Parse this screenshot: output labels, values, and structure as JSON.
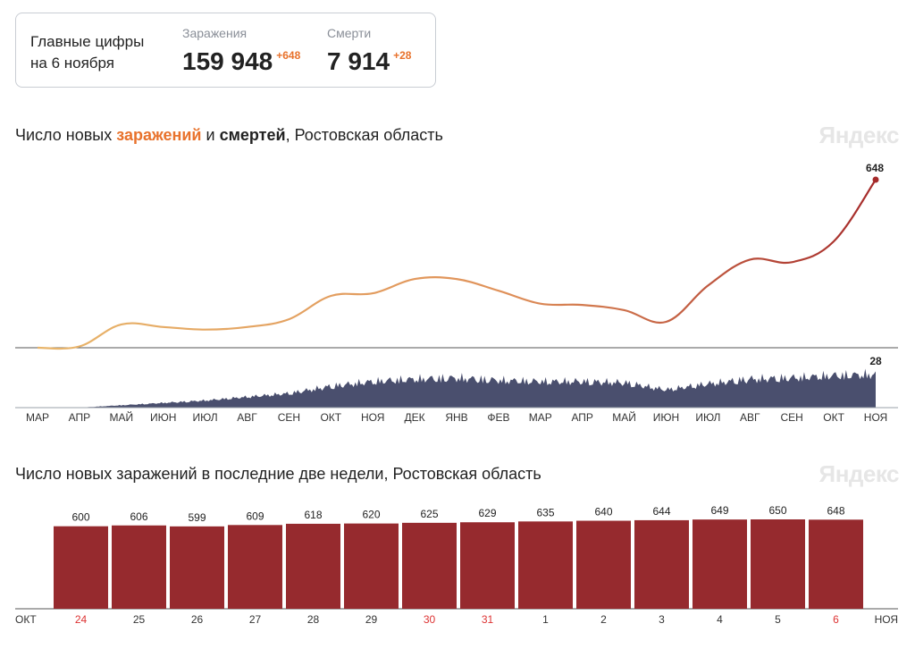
{
  "summary": {
    "title_line1": "Главные цифры",
    "title_line2": "на 6 ноября",
    "infections_label": "Заражения",
    "infections_value": "159 948",
    "infections_delta": "+648",
    "deaths_label": "Смерти",
    "deaths_value": "7 914",
    "deaths_delta": "+28"
  },
  "chart1": {
    "title_part1": "Число новых ",
    "title_infections": "заражений",
    "title_part2": " и ",
    "title_deaths": "смертей",
    "title_part3": ", Ростовская область",
    "watermark": "Яндекс",
    "last_infections_label": "648",
    "last_deaths_label": "28",
    "months": [
      "МАР",
      "АПР",
      "МАЙ",
      "ИЮН",
      "ИЮЛ",
      "АВГ",
      "СЕН",
      "ОКТ",
      "НОЯ",
      "ДЕК",
      "ЯНВ",
      "ФЕВ",
      "МАР",
      "АПР",
      "МАЙ",
      "ИЮН",
      "ИЮЛ",
      "АВГ",
      "СЕН",
      "ОКТ",
      "НОЯ"
    ]
  },
  "chart2": {
    "title": "Число новых заражений в последние две недели, Ростовская область",
    "watermark": "Яндекс",
    "left_month": "ОКТ",
    "right_month": "НОЯ"
  },
  "colors": {
    "infections_start": "#e8b56a",
    "infections_end": "#a52a2a",
    "deaths_fill": "#4a4f6e",
    "bar": "#962a2e",
    "weekend": "#d33333"
  },
  "chart_data": [
    {
      "type": "line",
      "title": "Число новых заражений и смертей, Ростовская область",
      "x": [
        "МАР",
        "АПР",
        "МАЙ",
        "ИЮН",
        "ИЮЛ",
        "АВГ",
        "СЕН",
        "ОКТ",
        "НОЯ",
        "ДЕК",
        "ЯНВ",
        "ФЕВ",
        "МАР",
        "АПР",
        "МАЙ",
        "ИЮН",
        "ИЮЛ",
        "АВГ",
        "СЕН",
        "ОКТ",
        "НОЯ"
      ],
      "series": [
        {
          "values": [
            0,
            5,
            90,
            80,
            70,
            80,
            110,
            200,
            210,
            265,
            265,
            220,
            170,
            165,
            145,
            100,
            240,
            340,
            330,
            410,
            648
          ]
        },
        {
          "values": [
            0,
            0,
            2,
            4,
            6,
            9,
            12,
            18,
            22,
            24,
            25,
            23,
            22,
            22,
            21,
            15,
            20,
            24,
            25,
            27,
            28
          ]
        }
      ]
    },
    {
      "type": "bar",
      "title": "Число новых заражений в последние две недели, Ростовская область",
      "categories": [
        "24",
        "25",
        "26",
        "27",
        "28",
        "29",
        "30",
        "31",
        "1",
        "2",
        "3",
        "4",
        "5",
        "6"
      ],
      "weekend": [
        true,
        false,
        false,
        false,
        false,
        false,
        true,
        true,
        false,
        false,
        false,
        false,
        false,
        true
      ],
      "values": [
        600,
        606,
        599,
        609,
        618,
        620,
        625,
        629,
        635,
        640,
        644,
        649,
        650,
        648
      ]
    }
  ]
}
